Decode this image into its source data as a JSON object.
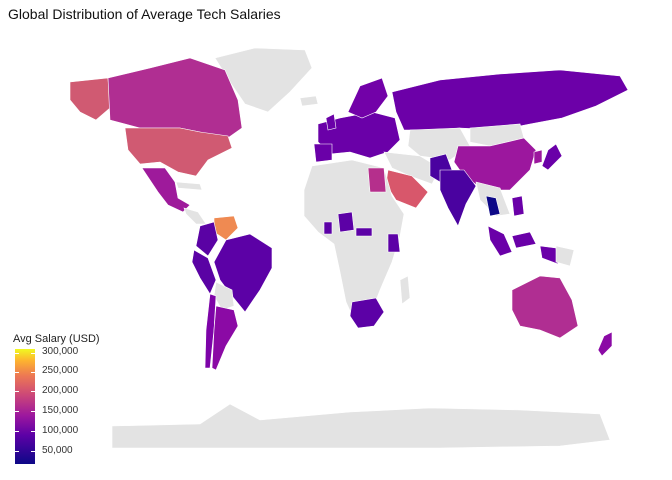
{
  "title": "Global Distribution of Average Tech Salaries",
  "legend": {
    "title": "Avg Salary (USD)",
    "ticks": [
      "300,000",
      "250,000",
      "200,000",
      "150,000",
      "100,000",
      "50,000"
    ],
    "palette": [
      "#0d0887",
      "#5c01a6",
      "#9c179e",
      "#cc4778",
      "#ed7953",
      "#fdb42f",
      "#f0f921"
    ],
    "no_data_color": "#e3e3e3"
  },
  "countries": [
    {
      "name": "USA",
      "color": "#d05a72"
    },
    {
      "name": "Canada",
      "color": "#b02e92"
    },
    {
      "name": "Alaska",
      "color": "#d05a72"
    },
    {
      "name": "Mexico",
      "color": "#9e1a9b"
    },
    {
      "name": "Venezuela",
      "color": "#ef8a52"
    },
    {
      "name": "Colombia",
      "color": "#5a02a4"
    },
    {
      "name": "Brazil",
      "color": "#5c01a6"
    },
    {
      "name": "Argentina",
      "color": "#8b0aa5"
    },
    {
      "name": "Chile",
      "color": "#7d03a8"
    },
    {
      "name": "Russia",
      "color": "#6c00a8"
    },
    {
      "name": "China",
      "color": "#9c179e"
    },
    {
      "name": "India",
      "color": "#4a02a0"
    },
    {
      "name": "Saudi Arabia",
      "color": "#d8576b"
    },
    {
      "name": "Egypt",
      "color": "#b52f8c"
    },
    {
      "name": "Australia",
      "color": "#b02e92"
    },
    {
      "name": "New Zealand",
      "color": "#8b0aa5"
    },
    {
      "name": "South Africa",
      "color": "#5c01a6"
    },
    {
      "name": "Indonesia",
      "color": "#6a00a8"
    },
    {
      "name": "Thailand",
      "color": "#0d0887"
    },
    {
      "name": "Japan",
      "color": "#6a00a8"
    },
    {
      "name": "Europe",
      "color": "#6a00a8"
    },
    {
      "name": "Scandinavia",
      "color": "#7201a8"
    },
    {
      "name": "Nigeria",
      "color": "#5c01a6"
    },
    {
      "name": "Kenya",
      "color": "#5c01a6"
    }
  ]
}
